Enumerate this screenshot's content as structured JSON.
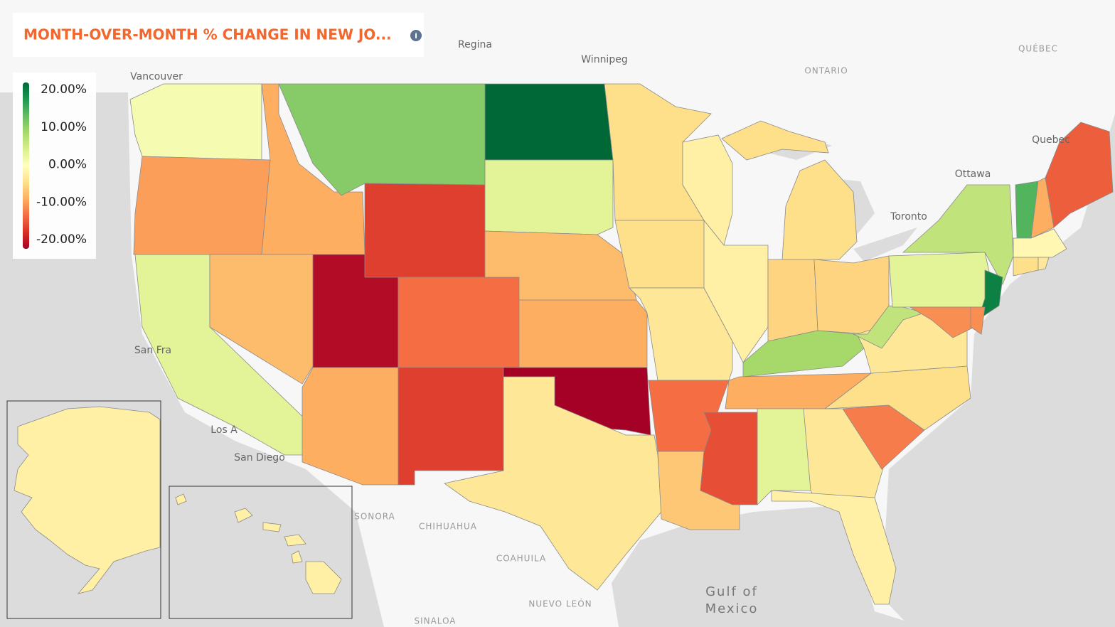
{
  "chart_data": {
    "type": "choropleth",
    "title": "MONTH-OVER-MONTH % CHANGE IN NEW JO...",
    "colorscale": [
      "#a50026",
      "#d73027",
      "#f46d43",
      "#fdae61",
      "#fee08b",
      "#ffffbf",
      "#d9ef8b",
      "#a6d96a",
      "#66bd63",
      "#1a9850",
      "#006837"
    ],
    "zlim": [
      -20,
      20
    ],
    "zticks": [
      {
        "value": 20,
        "label": "20.00%"
      },
      {
        "value": 10,
        "label": "10.00%"
      },
      {
        "value": 0,
        "label": "0.00%"
      },
      {
        "value": -10,
        "label": "-10.00%"
      },
      {
        "value": -20,
        "label": "-20.00%"
      }
    ],
    "values": [
      1,
      -9,
      3,
      -8,
      -7,
      10,
      -15,
      -19,
      -12,
      -8,
      -15,
      20,
      3,
      -7,
      -8,
      -20,
      -3,
      -4,
      -4,
      -3,
      -12,
      -6,
      -14,
      -2,
      -2,
      -5,
      -5,
      -4,
      8,
      -8,
      3,
      -3,
      -2,
      -11,
      -4,
      -3,
      6,
      3,
      6,
      18,
      -10,
      -10,
      13,
      -8,
      -13,
      -1,
      -4,
      -3,
      -2,
      -2
    ],
    "places": [
      "Regina",
      "Winnipeg",
      "Vancouver",
      "ONTARIO",
      "QUÉBEC",
      "Quebec",
      "Ottawa",
      "Toronto",
      "San Fra",
      "Los A",
      "San Diego",
      "SONORA",
      "CHIHUAHUA",
      "COAHUILA",
      "NUEVO LEÓN",
      "SINALOA",
      "Gulf of",
      "Mexico"
    ]
  }
}
